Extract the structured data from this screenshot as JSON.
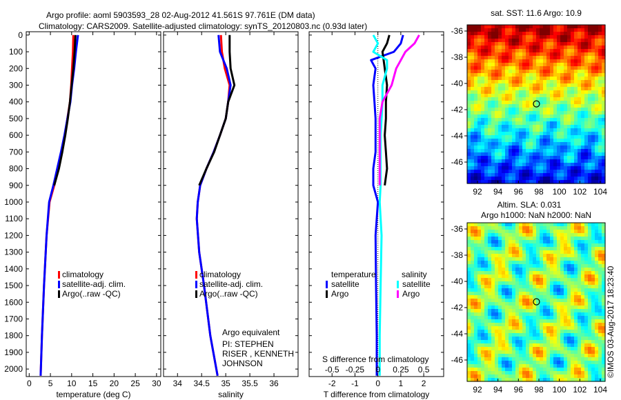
{
  "title_line1": "Argo profile: aoml 5903593_28 02-Aug-2012 41.561S 97.761E (DM data)",
  "title_line2": "Climatology: CARS2009. Satellite-adjusted climatology: synTS_20120803.nc (0.93d later)",
  "colors": {
    "climatology": "#ff0000",
    "satellite": "#0000ff",
    "argo": "#000000",
    "sal_satellite": "#00ffff",
    "sal_argo": "#ff00ff"
  },
  "chart_data": [
    {
      "type": "line",
      "id": "temperature",
      "xlabel": "temperature (deg C)",
      "xlim": [
        -0.7,
        31
      ],
      "ylim": [
        2045,
        -20
      ],
      "xticks": [
        0,
        5,
        10,
        15,
        20,
        25,
        30
      ],
      "yticks": [
        0,
        100,
        200,
        300,
        400,
        500,
        600,
        700,
        800,
        900,
        1000,
        1100,
        1200,
        1300,
        1400,
        1500,
        1600,
        1700,
        1800,
        1900,
        2000
      ],
      "depth": [
        0,
        100,
        200,
        300,
        400,
        500,
        600,
        700,
        800,
        900,
        1000,
        1200,
        1500,
        1800,
        2040
      ],
      "series": [
        {
          "name": "climatology",
          "color": "#ff0000",
          "values": [
            10.4,
            10.3,
            10.1,
            9.9,
            9.6,
            9.0,
            8.4,
            7.6,
            6.8,
            5.9,
            4.8,
            4.1,
            3.5,
            3.0,
            2.7
          ]
        },
        {
          "name": "satellite-adj. clim.",
          "color": "#0000ff",
          "values": [
            11.5,
            11.0,
            10.6,
            10.1,
            9.7,
            9.0,
            8.3,
            7.5,
            6.6,
            5.7,
            4.7,
            4.1,
            3.5,
            3.0,
            2.7
          ]
        },
        {
          "name": "Argo(..raw -QC)",
          "color": "#000000",
          "values": [
            10.9,
            10.7,
            10.4,
            10.0,
            9.6,
            9.1,
            8.5,
            7.8,
            7.0,
            5.9,
            null,
            null,
            null,
            null,
            null
          ]
        }
      ],
      "legend": [
        "climatology",
        "satellite-adj. clim.",
        "Argo(..raw -QC)"
      ]
    },
    {
      "type": "line",
      "id": "salinity",
      "xlabel": "salinity",
      "xlim": [
        33.71,
        36.5
      ],
      "ylim": [
        2045,
        -20
      ],
      "xticks": [
        34,
        34.5,
        35,
        35.5,
        36
      ],
      "xticklabels": [
        "34",
        "34.5",
        "35",
        "35.5",
        "36"
      ],
      "depth": [
        0,
        100,
        200,
        300,
        400,
        500,
        600,
        700,
        800,
        900,
        1000,
        1100,
        1300,
        1500,
        1800,
        2040
      ],
      "series": [
        {
          "name": "climatology",
          "color": "#ff0000",
          "values": [
            34.9,
            34.92,
            34.98,
            35.08,
            35.05,
            35.0,
            34.88,
            34.75,
            34.6,
            34.47,
            34.42,
            34.4,
            34.45,
            34.55,
            34.68,
            34.83
          ]
        },
        {
          "name": "satellite-adj. clim.",
          "color": "#0000ff",
          "values": [
            34.85,
            34.88,
            35.02,
            35.1,
            35.05,
            35.0,
            34.88,
            34.75,
            34.6,
            34.47,
            34.42,
            34.4,
            34.45,
            34.55,
            34.68,
            34.83
          ]
        },
        {
          "name": "Argo(..raw -QC)",
          "color": "#000000",
          "values": [
            35.08,
            35.08,
            35.1,
            35.18,
            35.05,
            35.0,
            34.88,
            34.76,
            34.6,
            34.45,
            null,
            null,
            null,
            null,
            null,
            null
          ]
        }
      ],
      "legend": [
        "climatology",
        "satellite-adj. clim.",
        "Argo(..raw -QC)"
      ],
      "annotation1": "Argo equivalent",
      "annotation2": "PI: STEPHEN RISER , KENNETH JOHNSON"
    },
    {
      "type": "line",
      "id": "difference",
      "xlabel": "T difference from climatology",
      "xlabel2": "S difference from climatology",
      "xlim": [
        -3,
        2.87
      ],
      "ylim": [
        2045,
        -20
      ],
      "xticks": [
        -2,
        -1,
        0,
        1,
        2
      ],
      "s_xticks": [
        -0.5,
        -0.25,
        0,
        0.25,
        0.5
      ],
      "s_xticklabels": [
        "-0.5",
        "-0.25",
        "0",
        "0.25",
        "0.5"
      ],
      "depth": [
        0,
        50,
        100,
        150,
        200,
        300,
        400,
        500,
        600,
        700,
        800,
        900,
        1000,
        1200,
        1500,
        1800,
        2040
      ],
      "series": [
        {
          "name": "temperature satellite",
          "color": "#0000ff",
          "values": [
            1.1,
            1.0,
            0.7,
            -0.3,
            -0.1,
            -0.2,
            -0.15,
            -0.1,
            -0.1,
            -0.1,
            -0.2,
            -0.2,
            0,
            -0.1,
            -0.08,
            -0.05,
            -0.05
          ]
        },
        {
          "name": "temperature Argo",
          "color": "#000000",
          "values": [
            0.5,
            0.4,
            0.2,
            0.25,
            0.3,
            0.4,
            0.35,
            0.35,
            0.3,
            0.35,
            0.4,
            0.3,
            null,
            null,
            null,
            null,
            null
          ]
        },
        {
          "name": "salinity satellite",
          "color": "#00ffff",
          "values": [
            -0.05,
            0,
            -0.05,
            0.1,
            0.1,
            0.05,
            0.05,
            0.04,
            0.03,
            0.03,
            0.03,
            0.03,
            0.02,
            0.04,
            0.03,
            0.02,
            0.02
          ]
        },
        {
          "name": "salinity Argo",
          "color": "#ff00ff",
          "values": [
            0.45,
            0.4,
            0.3,
            0.25,
            0.2,
            0.15,
            0.05,
            0.02,
            0.02,
            0.02,
            0.02,
            0.02,
            null,
            null,
            null,
            null,
            null
          ]
        }
      ],
      "legend_temperature": "temperature",
      "legend_salinity": "salinity",
      "legend_satellite": "satellite",
      "legend_argo": "Argo"
    },
    {
      "type": "heatmap",
      "id": "sst_map",
      "title": "sat. SST: 11.6 Argo: 10.9",
      "xticks": [
        92,
        94,
        96,
        98,
        100,
        102,
        104
      ],
      "yticks": [
        -36,
        -38,
        -40,
        -42,
        -44,
        -46
      ],
      "marker": [
        97.761,
        -41.561
      ]
    },
    {
      "type": "heatmap",
      "id": "sla_map",
      "title1": "Altim. SLA: 0.031",
      "title2": "Argo h1000: NaN h2000: NaN",
      "xticks": [
        92,
        94,
        96,
        98,
        100,
        102,
        104
      ],
      "yticks": [
        -36,
        -38,
        -40,
        -42,
        -44,
        -46
      ],
      "marker": [
        97.761,
        -41.561
      ]
    }
  ],
  "credit": "©IMOS 03-Aug-2017 18:23:40"
}
